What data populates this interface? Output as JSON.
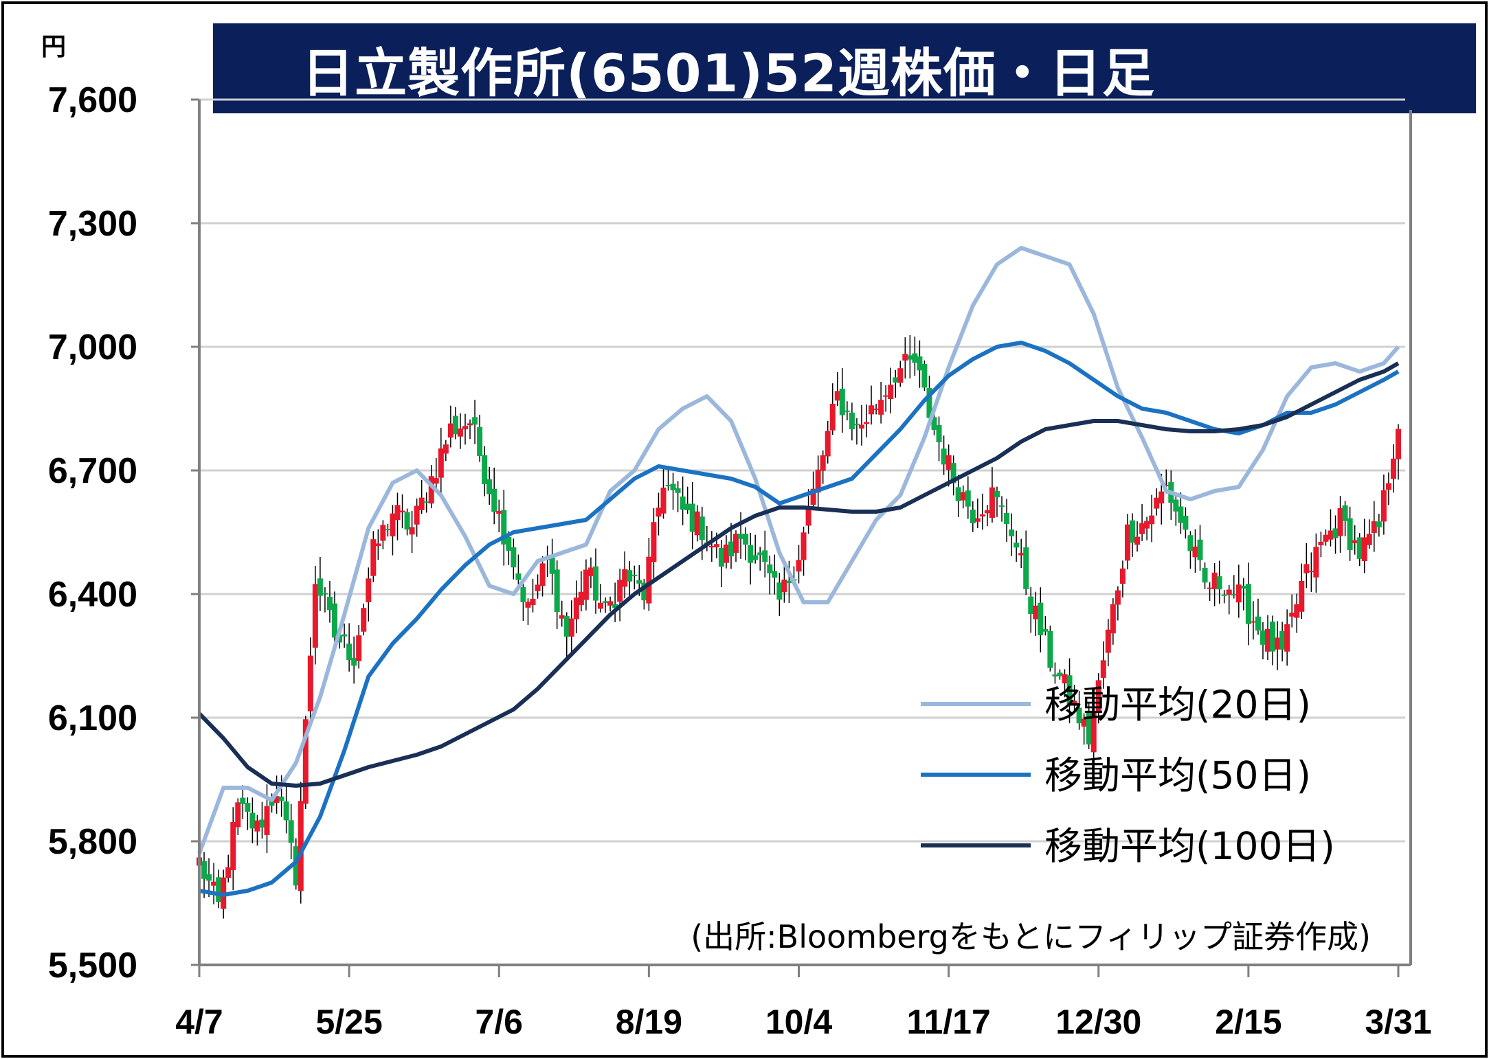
{
  "title": "日立製作所(6501)52週株価・日足",
  "unit_label": "円",
  "source_note": "(出所:Bloombergをもとにフィリップ証券作成)",
  "colors": {
    "title_bg": "#0b1f5b",
    "up": "#e8192c",
    "down": "#0da84a",
    "ma20": "#9bb7db",
    "ma50": "#1c72c2",
    "ma100": "#1a2f55",
    "grid": "#d0d0d0",
    "axis": "#7f7f7f"
  },
  "chart_data": {
    "type": "candlestick",
    "title": "日立製作所(6501)52週株価・日足",
    "ylabel": "円",
    "xlabel": "",
    "ylim": [
      5500,
      7600
    ],
    "yticks": [
      5500,
      5800,
      6100,
      6400,
      6700,
      7000,
      7300,
      7600
    ],
    "ytick_labels": [
      "5,500",
      "5,800",
      "6,100",
      "6,400",
      "6,700",
      "7,000",
      "7,300",
      "7,600"
    ],
    "xticks": [
      {
        "label": "4/7",
        "index": 0
      },
      {
        "label": "5/25",
        "index": 31
      },
      {
        "label": "7/6",
        "index": 62
      },
      {
        "label": "8/19",
        "index": 93
      },
      {
        "label": "10/4",
        "index": 124
      },
      {
        "label": "11/17",
        "index": 155
      },
      {
        "label": "12/30",
        "index": 186
      },
      {
        "label": "2/15",
        "index": 217
      },
      {
        "label": "3/31",
        "index": 248
      }
    ],
    "num_days": 249,
    "grid": "horizontal",
    "legend_placement": "bottom-right",
    "close_anchors": [
      [
        0,
        5750
      ],
      [
        4,
        5640
      ],
      [
        8,
        5880
      ],
      [
        12,
        5830
      ],
      [
        16,
        5930
      ],
      [
        20,
        5720
      ],
      [
        24,
        6440
      ],
      [
        28,
        6300
      ],
      [
        32,
        6250
      ],
      [
        36,
        6500
      ],
      [
        40,
        6600
      ],
      [
        44,
        6560
      ],
      [
        48,
        6680
      ],
      [
        52,
        6800
      ],
      [
        56,
        6820
      ],
      [
        60,
        6660
      ],
      [
        64,
        6520
      ],
      [
        68,
        6360
      ],
      [
        72,
        6480
      ],
      [
        76,
        6300
      ],
      [
        80,
        6460
      ],
      [
        84,
        6350
      ],
      [
        88,
        6450
      ],
      [
        92,
        6400
      ],
      [
        96,
        6680
      ],
      [
        100,
        6600
      ],
      [
        104,
        6560
      ],
      [
        108,
        6480
      ],
      [
        112,
        6540
      ],
      [
        116,
        6480
      ],
      [
        120,
        6380
      ],
      [
        124,
        6500
      ],
      [
        128,
        6690
      ],
      [
        132,
        6880
      ],
      [
        136,
        6800
      ],
      [
        140,
        6860
      ],
      [
        144,
        6940
      ],
      [
        148,
        6960
      ],
      [
        152,
        6800
      ],
      [
        156,
        6680
      ],
      [
        160,
        6600
      ],
      [
        164,
        6640
      ],
      [
        168,
        6560
      ],
      [
        172,
        6380
      ],
      [
        176,
        6240
      ],
      [
        180,
        6150
      ],
      [
        184,
        6050
      ],
      [
        188,
        6300
      ],
      [
        192,
        6550
      ],
      [
        196,
        6580
      ],
      [
        200,
        6660
      ],
      [
        204,
        6550
      ],
      [
        208,
        6420
      ],
      [
        212,
        6430
      ],
      [
        216,
        6380
      ],
      [
        220,
        6300
      ],
      [
        224,
        6250
      ],
      [
        228,
        6420
      ],
      [
        232,
        6520
      ],
      [
        236,
        6580
      ],
      [
        240,
        6500
      ],
      [
        244,
        6560
      ],
      [
        248,
        6820
      ]
    ],
    "series": [
      {
        "name": "移動平均(20日)",
        "x": [
          0,
          5,
          10,
          15,
          20,
          25,
          30,
          35,
          40,
          45,
          50,
          55,
          60,
          65,
          70,
          75,
          80,
          85,
          90,
          95,
          100,
          105,
          110,
          115,
          120,
          125,
          130,
          135,
          140,
          145,
          150,
          155,
          160,
          165,
          170,
          175,
          180,
          185,
          190,
          195,
          200,
          205,
          210,
          215,
          220,
          225,
          230,
          235,
          240,
          245,
          248
        ],
        "values": [
          5770,
          5930,
          5930,
          5900,
          5990,
          6150,
          6350,
          6560,
          6670,
          6700,
          6640,
          6540,
          6420,
          6400,
          6480,
          6500,
          6520,
          6650,
          6700,
          6800,
          6850,
          6880,
          6820,
          6680,
          6500,
          6380,
          6380,
          6480,
          6580,
          6640,
          6780,
          6950,
          7100,
          7200,
          7240,
          7220,
          7200,
          7080,
          6900,
          6780,
          6650,
          6630,
          6650,
          6660,
          6750,
          6880,
          6950,
          6960,
          6940,
          6960,
          7000
        ]
      },
      {
        "name": "移動平均(50日)",
        "x": [
          0,
          5,
          10,
          15,
          20,
          25,
          30,
          35,
          40,
          45,
          50,
          55,
          60,
          65,
          70,
          75,
          80,
          85,
          90,
          95,
          100,
          105,
          110,
          115,
          120,
          125,
          130,
          135,
          140,
          145,
          150,
          155,
          160,
          165,
          170,
          175,
          180,
          185,
          190,
          195,
          200,
          205,
          210,
          215,
          220,
          225,
          230,
          235,
          240,
          245,
          248
        ],
        "values": [
          5680,
          5670,
          5680,
          5700,
          5750,
          5860,
          6020,
          6200,
          6280,
          6340,
          6410,
          6470,
          6520,
          6550,
          6560,
          6570,
          6580,
          6630,
          6680,
          6710,
          6700,
          6690,
          6680,
          6660,
          6620,
          6640,
          6660,
          6680,
          6740,
          6800,
          6870,
          6930,
          6970,
          7000,
          7010,
          6990,
          6960,
          6920,
          6880,
          6850,
          6840,
          6820,
          6800,
          6790,
          6810,
          6840,
          6840,
          6860,
          6890,
          6920,
          6940
        ]
      },
      {
        "name": "移動平均(100日)",
        "x": [
          0,
          5,
          10,
          15,
          20,
          25,
          30,
          35,
          40,
          45,
          50,
          55,
          60,
          65,
          70,
          75,
          80,
          85,
          90,
          95,
          100,
          105,
          110,
          115,
          120,
          125,
          130,
          135,
          140,
          145,
          150,
          155,
          160,
          165,
          170,
          175,
          180,
          185,
          190,
          195,
          200,
          205,
          210,
          215,
          220,
          225,
          230,
          235,
          240,
          245,
          248
        ],
        "values": [
          6110,
          6050,
          5980,
          5940,
          5935,
          5940,
          5960,
          5980,
          5995,
          6010,
          6030,
          6060,
          6090,
          6120,
          6170,
          6230,
          6290,
          6350,
          6400,
          6440,
          6480,
          6520,
          6560,
          6590,
          6610,
          6610,
          6605,
          6600,
          6600,
          6610,
          6640,
          6670,
          6700,
          6730,
          6770,
          6800,
          6810,
          6820,
          6820,
          6810,
          6800,
          6795,
          6795,
          6800,
          6810,
          6830,
          6860,
          6890,
          6920,
          6940,
          6960
        ]
      }
    ],
    "legend": [
      "移動平均(20日)",
      "移動平均(50日)",
      "移動平均(100日)"
    ]
  }
}
